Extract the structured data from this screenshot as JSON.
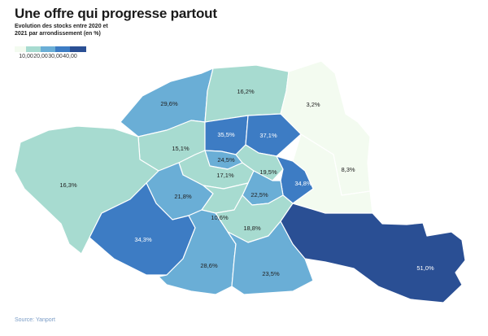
{
  "title": "Une offre qui progresse partout",
  "legend": {
    "title": "Evolution des stocks entre 2020 et 2021 par arrondissement (en %)",
    "ticks": [
      "10,00",
      "20,00",
      "30,00",
      "40,00"
    ],
    "colors": [
      "#f3fbf0",
      "#a7dbd0",
      "#6aaed6",
      "#3d7cc4",
      "#2a4f94"
    ]
  },
  "source": "Source: Yanport",
  "map_data": {
    "type": "choropleth",
    "region": "Paris arrondissements",
    "unit": "%",
    "areas": [
      {
        "label": "29,6%",
        "value": 29.6
      },
      {
        "label": "16,2%",
        "value": 16.2
      },
      {
        "label": "3,2%",
        "value": 3.2
      },
      {
        "label": "15,1%",
        "value": 15.1
      },
      {
        "label": "35,5%",
        "value": 35.5
      },
      {
        "label": "37,1%",
        "value": 37.1
      },
      {
        "label": "8,3%",
        "value": 8.3
      },
      {
        "label": "16,3%",
        "value": 16.3
      },
      {
        "label": "24,5%",
        "value": 24.5
      },
      {
        "label": "17,1%",
        "value": 17.1
      },
      {
        "label": "19,5%",
        "value": 19.5
      },
      {
        "label": "34,8%",
        "value": 34.8
      },
      {
        "label": "21,8%",
        "value": 21.8
      },
      {
        "label": "22,5%",
        "value": 22.5
      },
      {
        "label": "10,6%",
        "value": 10.6
      },
      {
        "label": "18,8%",
        "value": 18.8
      },
      {
        "label": "34,3%",
        "value": 34.3
      },
      {
        "label": "28,6%",
        "value": 28.6
      },
      {
        "label": "23,5%",
        "value": 23.5
      },
      {
        "label": "51,0%",
        "value": 51.0
      }
    ]
  }
}
